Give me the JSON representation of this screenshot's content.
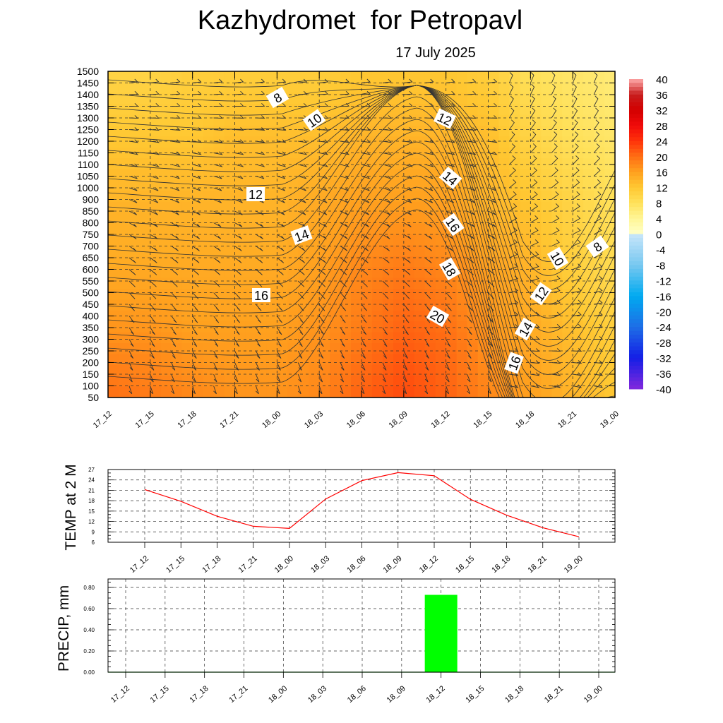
{
  "title": "Kazhydromet  for Petropavl",
  "subtitle": "17 July 2025",
  "colors": {
    "temp_line": "#ff0000",
    "precip_bar": "#00ff00",
    "contour": "#333333",
    "grid": "#333333"
  },
  "chart_data": [
    {
      "type": "heatmap",
      "description_kind": "time-height cross-section",
      "x_tick_labels": [
        "17_12",
        "17_15",
        "17_18",
        "17_21",
        "18_00",
        "18_03",
        "18_06",
        "18_09",
        "18_12",
        "18_15",
        "18_18",
        "18_21",
        "19_00"
      ],
      "y_tick_labels": [
        "1500",
        "1450",
        "1400",
        "1350",
        "1300",
        "1250",
        "1200",
        "1150",
        "1100",
        "1050",
        "1000",
        "900",
        "850",
        "800",
        "750",
        "700",
        "650",
        "600",
        "550",
        "500",
        "450",
        "400",
        "350",
        "300",
        "250",
        "200",
        "150",
        "100",
        "50"
      ],
      "colorbar_ticks": [
        "40",
        "36",
        "32",
        "28",
        "24",
        "20",
        "16",
        "12",
        "8",
        "4",
        "0",
        "-4",
        "-8",
        "-12",
        "-16",
        "-20",
        "-24",
        "-28",
        "-32",
        "-36",
        "-40"
      ],
      "contour_labels": [
        "8",
        "10",
        "12",
        "12",
        "14",
        "14",
        "16",
        "16",
        "18",
        "20",
        "10",
        "12",
        "14",
        "16",
        "8"
      ],
      "field": [
        [
          10,
          10,
          11,
          11,
          11,
          11,
          12,
          12,
          12,
          11,
          8,
          7,
          6
        ],
        [
          12,
          12,
          12,
          13,
          13,
          13,
          14,
          14,
          14,
          13,
          10,
          8,
          7
        ],
        [
          14,
          14,
          14,
          14,
          14,
          15,
          16,
          16,
          16,
          14,
          12,
          10,
          8
        ],
        [
          15,
          15,
          15,
          15,
          15,
          16,
          18,
          19,
          18,
          16,
          14,
          11,
          9
        ],
        [
          17,
          17,
          16,
          16,
          16,
          17,
          19,
          21,
          20,
          17,
          15,
          13,
          11
        ],
        [
          20,
          19,
          18,
          17,
          17,
          18,
          21,
          23,
          21,
          18,
          16,
          14,
          12
        ]
      ]
    },
    {
      "type": "line",
      "ylabel": "TEMP at 2 M",
      "x": [
        "17_12",
        "17_15",
        "17_18",
        "17_21",
        "18_00",
        "18_03",
        "18_06",
        "18_09",
        "18_12",
        "18_15",
        "18_18",
        "18_21",
        "19_00"
      ],
      "y_tick_labels": [
        "27",
        "24",
        "21",
        "18",
        "15",
        "12",
        "9",
        "6"
      ],
      "ylim": [
        6,
        27
      ],
      "series": [
        {
          "values": [
            21.2,
            17.8,
            13.5,
            10.6,
            10.0,
            18.5,
            23.8,
            26.1,
            25.2,
            18.4,
            13.8,
            10.2,
            7.6
          ]
        }
      ]
    },
    {
      "type": "bar",
      "ylabel": "PRECIP, mm",
      "categories": [
        "17_12",
        "17_15",
        "17_18",
        "17_21",
        "18_00",
        "18_03",
        "18_06",
        "18_09",
        "18_12",
        "18_15",
        "18_18",
        "18_21",
        "19_00"
      ],
      "y_tick_labels": [
        "0.80",
        "0.60",
        "0.40",
        "0.20",
        "0.00"
      ],
      "ylim": [
        0,
        0.88
      ],
      "values": [
        0,
        0,
        0,
        0,
        0,
        0,
        0,
        0,
        0.73,
        0,
        0,
        0,
        0
      ]
    }
  ]
}
